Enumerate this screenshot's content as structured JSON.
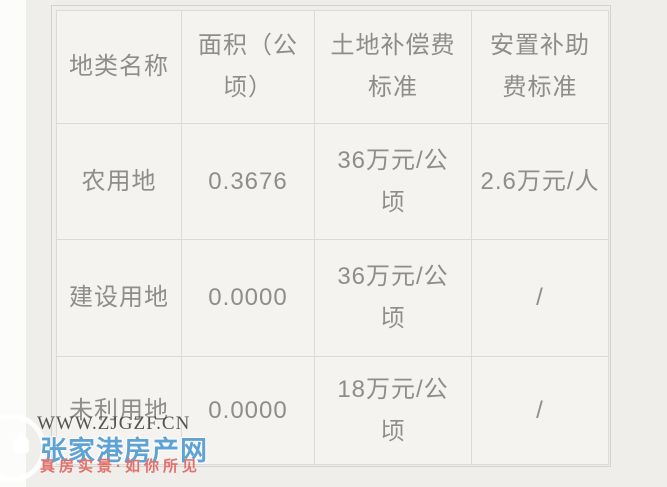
{
  "table": {
    "header": [
      "地类名称",
      "面积（公\n顷）",
      "土地补偿费\n标准",
      "安置补助\n费标准"
    ],
    "rows": [
      [
        "农用地",
        "0.3676",
        "36万元/公\n顷",
        "2.6万元/人"
      ],
      [
        "建设用地",
        "0.0000",
        "36万元/公\n顷",
        "/"
      ],
      [
        "未利用地",
        "0.0000",
        "18万元/公\n顷",
        "/"
      ]
    ]
  },
  "watermark": {
    "url": "WWW.ZJGZF.CN",
    "site_name": "张家港房产网",
    "slogan": "真房实景·如你所见",
    "logo": "house-icon",
    "colors": {
      "site_name": "#5fa3d4",
      "slogan": "#e2706c",
      "url": "#3e3e3e"
    }
  },
  "page": {
    "background": "#efeeeb",
    "cell_background": "#f4f3f0",
    "border_color": "#dbdad6",
    "text_color": "#8d8d89"
  }
}
